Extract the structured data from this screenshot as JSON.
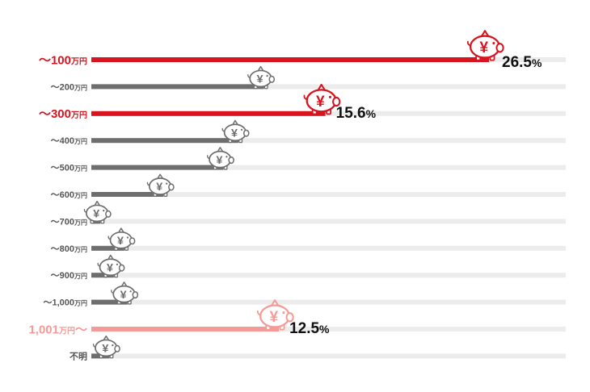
{
  "chart_data": {
    "type": "bar",
    "orientation": "horizontal",
    "categories": [
      {
        "main": "〜100",
        "unit": "万円"
      },
      {
        "main": "〜200",
        "unit": "万円"
      },
      {
        "main": "〜300",
        "unit": "万円"
      },
      {
        "main": "〜400",
        "unit": "万円"
      },
      {
        "main": "〜500",
        "unit": "万円"
      },
      {
        "main": "〜600",
        "unit": "万円"
      },
      {
        "main": "〜700",
        "unit": "万円"
      },
      {
        "main": "〜800",
        "unit": "万円"
      },
      {
        "main": "〜900",
        "unit": "万円"
      },
      {
        "main": "〜1,000",
        "unit": "万円"
      },
      {
        "main": "1,001",
        "unit": "万円",
        "suffix": "〜"
      },
      {
        "main": "不明",
        "unit": ""
      }
    ],
    "values": [
      26.5,
      11.5,
      15.6,
      9.8,
      8.8,
      4.8,
      0.6,
      2.2,
      1.5,
      2.4,
      12.5,
      1.2
    ],
    "value_labels": [
      {
        "number": "26.5",
        "unit": "%"
      },
      null,
      {
        "number": "15.6",
        "unit": "%"
      },
      null,
      null,
      null,
      null,
      null,
      null,
      null,
      {
        "number": "12.5",
        "unit": "%"
      },
      null
    ],
    "bar_colors": [
      "#d7141f",
      "#6e6e6e",
      "#d7141f",
      "#6e6e6e",
      "#6e6e6e",
      "#6e6e6e",
      "#6e6e6e",
      "#6e6e6e",
      "#6e6e6e",
      "#6e6e6e",
      "#f49b98",
      "#6e6e6e"
    ],
    "label_colors": [
      "#d7141f",
      "#555555",
      "#d7141f",
      "#555555",
      "#555555",
      "#555555",
      "#555555",
      "#555555",
      "#555555",
      "#555555",
      "#f49b98",
      "#555555"
    ],
    "track_color": "#ececec",
    "icon": "piggy-bank-yen-icon",
    "icon_glyph": "¥",
    "x_max": 26.5,
    "grid": false
  }
}
